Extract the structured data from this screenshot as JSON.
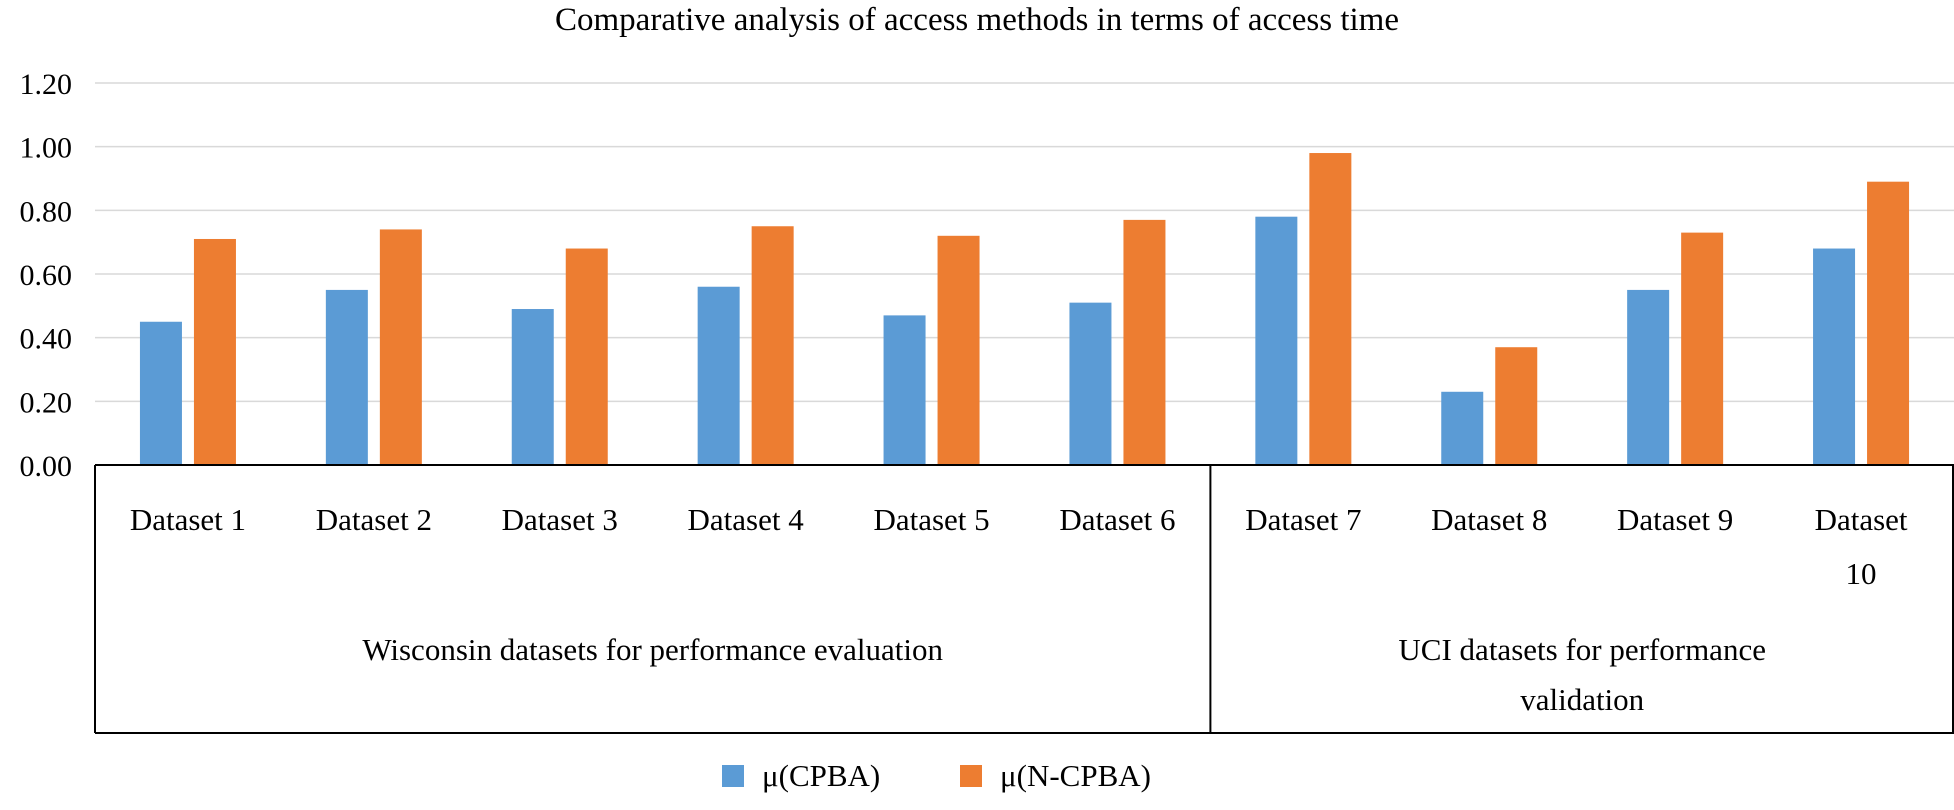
{
  "chart_data": {
    "type": "bar",
    "title": "Comparative analysis of access methods in terms of access time",
    "xlabel": "",
    "ylabel": "",
    "ylim": [
      0,
      1.2
    ],
    "yticks": [
      "0.00",
      "0.20",
      "0.40",
      "0.60",
      "0.80",
      "1.00",
      "1.20"
    ],
    "grid": true,
    "categories": [
      [
        "Dataset 1"
      ],
      [
        "Dataset 2"
      ],
      [
        "Dataset 3"
      ],
      [
        "Dataset 4"
      ],
      [
        "Dataset 5"
      ],
      [
        "Dataset 6"
      ],
      [
        "Dataset 7"
      ],
      [
        "Dataset 8"
      ],
      [
        "Dataset 9"
      ],
      [
        "Dataset",
        "10"
      ]
    ],
    "groups": [
      {
        "label": [
          "Wisconsin datasets for performance evaluation"
        ],
        "start": 0,
        "end": 5
      },
      {
        "label": [
          "UCI datasets for performance",
          "validation"
        ],
        "start": 6,
        "end": 9
      }
    ],
    "series": [
      {
        "name": "μ(CPBA)",
        "color": "#5b9bd5",
        "values": [
          0.45,
          0.55,
          0.49,
          0.56,
          0.47,
          0.51,
          0.78,
          0.23,
          0.55,
          0.68
        ]
      },
      {
        "name": "μ(N-CPBA)",
        "color": "#ed7d31",
        "values": [
          0.71,
          0.74,
          0.68,
          0.75,
          0.72,
          0.77,
          0.98,
          0.37,
          0.73,
          0.89
        ]
      }
    ],
    "legend": "bottom-center"
  }
}
